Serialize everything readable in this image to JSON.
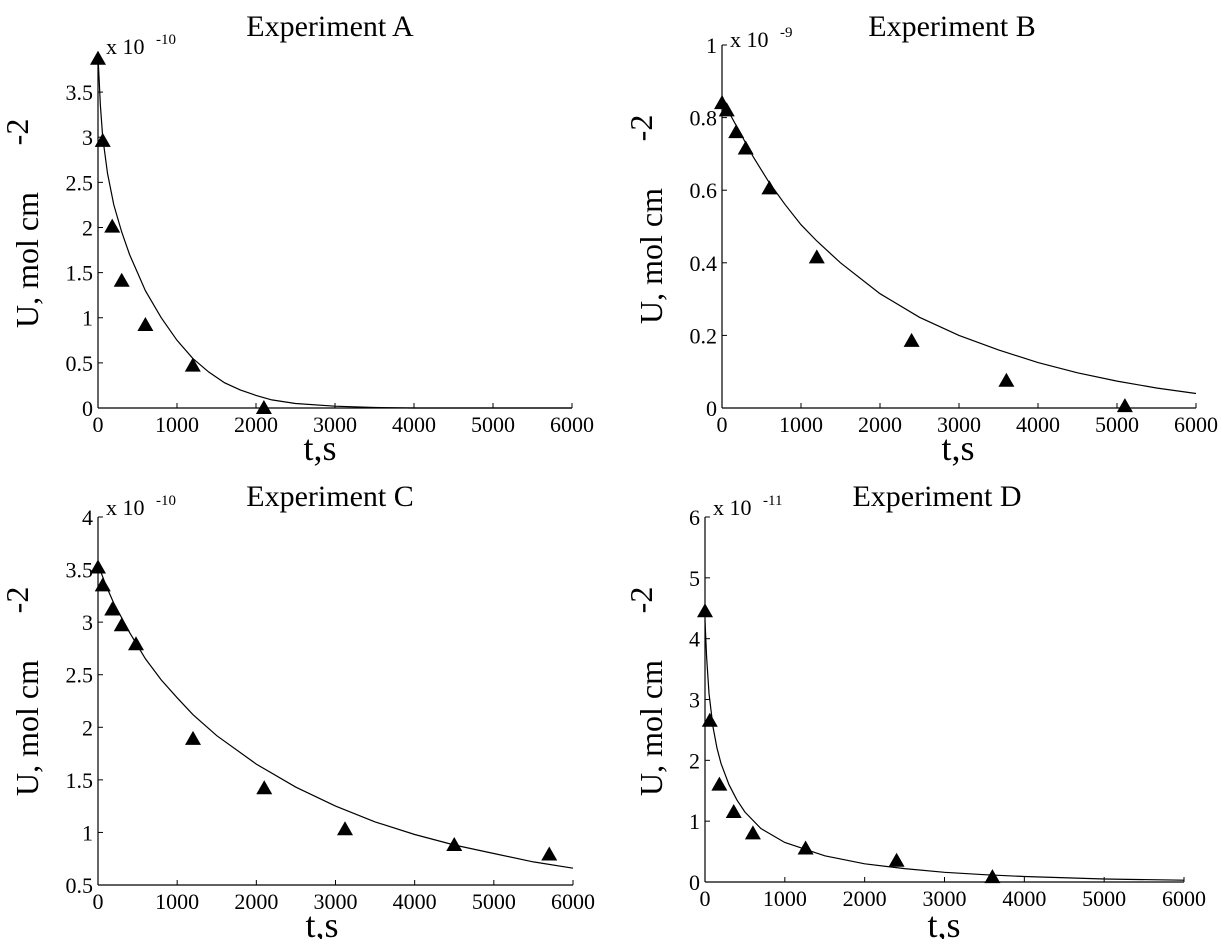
{
  "chart_data": [
    {
      "type": "scatter",
      "title": "Experiment A",
      "xlabel": "t,s",
      "ylabel_main": "U, mol cm",
      "ylabel_exp": "-2",
      "multiplier": "x 10",
      "multiplier_exp": "-10",
      "xlim": [
        0,
        6000
      ],
      "ylim": [
        0,
        3.9
      ],
      "xticks": [
        0,
        1000,
        2000,
        3000,
        4000,
        5000,
        6000
      ],
      "yticks": [
        0,
        0.5,
        1,
        1.5,
        2,
        2.5,
        3,
        3.5
      ],
      "ytick_labels": [
        "0",
        "0.5",
        "1",
        "1.5",
        "2",
        "2.5",
        "3",
        "3.5"
      ],
      "points": [
        [
          0,
          3.87
        ],
        [
          60,
          2.96
        ],
        [
          180,
          2.01
        ],
        [
          300,
          1.41
        ],
        [
          600,
          0.92
        ],
        [
          1200,
          0.47
        ],
        [
          2100,
          0.0
        ]
      ],
      "fit_curve": [
        [
          0,
          3.9
        ],
        [
          30,
          3.35
        ],
        [
          60,
          3.0
        ],
        [
          120,
          2.6
        ],
        [
          200,
          2.25
        ],
        [
          300,
          1.95
        ],
        [
          400,
          1.7
        ],
        [
          500,
          1.5
        ],
        [
          600,
          1.3
        ],
        [
          800,
          1.0
        ],
        [
          1000,
          0.75
        ],
        [
          1200,
          0.55
        ],
        [
          1400,
          0.4
        ],
        [
          1600,
          0.28
        ],
        [
          1800,
          0.2
        ],
        [
          2000,
          0.14
        ],
        [
          2200,
          0.09
        ],
        [
          2500,
          0.05
        ],
        [
          3000,
          0.02
        ],
        [
          3500,
          0.005
        ],
        [
          4000,
          0.0
        ],
        [
          6000,
          0.0
        ]
      ]
    },
    {
      "type": "scatter",
      "title": "Experiment B",
      "xlabel": "t,s",
      "ylabel_main": "U, mol cm",
      "ylabel_exp": "-2",
      "multiplier": "x 10",
      "multiplier_exp": "-9",
      "xlim": [
        0,
        6000
      ],
      "ylim": [
        0,
        1
      ],
      "xticks": [
        0,
        1000,
        2000,
        3000,
        4000,
        5000,
        6000
      ],
      "yticks": [
        0,
        0.2,
        0.4,
        0.6,
        0.8,
        1
      ],
      "ytick_labels": [
        "0",
        "0.2",
        "0.4",
        "0.6",
        "0.8",
        "1"
      ],
      "points": [
        [
          0,
          0.84
        ],
        [
          60,
          0.82
        ],
        [
          180,
          0.76
        ],
        [
          300,
          0.715
        ],
        [
          600,
          0.605
        ],
        [
          1200,
          0.415
        ],
        [
          2400,
          0.185
        ],
        [
          3600,
          0.075
        ],
        [
          5100,
          0.005
        ]
      ],
      "fit_curve": [
        [
          0,
          0.86
        ],
        [
          100,
          0.81
        ],
        [
          200,
          0.77
        ],
        [
          400,
          0.69
        ],
        [
          600,
          0.62
        ],
        [
          800,
          0.56
        ],
        [
          1000,
          0.505
        ],
        [
          1200,
          0.46
        ],
        [
          1500,
          0.4
        ],
        [
          2000,
          0.315
        ],
        [
          2500,
          0.25
        ],
        [
          3000,
          0.2
        ],
        [
          3500,
          0.16
        ],
        [
          4000,
          0.125
        ],
        [
          4500,
          0.097
        ],
        [
          5000,
          0.074
        ],
        [
          5500,
          0.055
        ],
        [
          6000,
          0.04
        ]
      ]
    },
    {
      "type": "scatter",
      "title": "Experiment C",
      "xlabel": "t,s",
      "ylabel_main": "U, mol cm",
      "ylabel_exp": "-2",
      "multiplier": "x 10",
      "multiplier_exp": "-10",
      "xlim": [
        0,
        6000
      ],
      "ylim": [
        0.5,
        4
      ],
      "xticks": [
        0,
        1000,
        2000,
        3000,
        4000,
        5000,
        6000
      ],
      "yticks": [
        0.5,
        1,
        1.5,
        2,
        2.5,
        3,
        3.5,
        4
      ],
      "ytick_labels": [
        "0.5",
        "1",
        "1.5",
        "2",
        "2.5",
        "3",
        "3.5",
        "4"
      ],
      "points": [
        [
          0,
          3.52
        ],
        [
          60,
          3.35
        ],
        [
          180,
          3.12
        ],
        [
          300,
          2.97
        ],
        [
          480,
          2.79
        ],
        [
          1200,
          1.89
        ],
        [
          2100,
          1.42
        ],
        [
          3120,
          1.03
        ],
        [
          4500,
          0.88
        ],
        [
          5700,
          0.79
        ]
      ],
      "fit_curve": [
        [
          0,
          3.55
        ],
        [
          100,
          3.35
        ],
        [
          200,
          3.18
        ],
        [
          400,
          2.9
        ],
        [
          600,
          2.65
        ],
        [
          800,
          2.45
        ],
        [
          1000,
          2.28
        ],
        [
          1200,
          2.12
        ],
        [
          1500,
          1.92
        ],
        [
          2000,
          1.65
        ],
        [
          2500,
          1.43
        ],
        [
          3000,
          1.25
        ],
        [
          3500,
          1.1
        ],
        [
          4000,
          0.98
        ],
        [
          4500,
          0.88
        ],
        [
          5000,
          0.8
        ],
        [
          5500,
          0.72
        ],
        [
          6000,
          0.66
        ]
      ]
    },
    {
      "type": "scatter",
      "title": "Experiment D",
      "xlabel": "t,s",
      "ylabel_main": "U, mol cm",
      "ylabel_exp": "-2",
      "multiplier": "x 10",
      "multiplier_exp": "-11",
      "xlim": [
        0,
        6000
      ],
      "ylim": [
        0,
        6
      ],
      "xticks": [
        0,
        1000,
        2000,
        3000,
        4000,
        5000,
        6000
      ],
      "yticks": [
        0,
        1,
        2,
        3,
        4,
        5,
        6
      ],
      "ytick_labels": [
        "0",
        "1",
        "2",
        "3",
        "4",
        "5",
        "6"
      ],
      "points": [
        [
          0,
          4.45
        ],
        [
          60,
          2.65
        ],
        [
          180,
          1.6
        ],
        [
          360,
          1.15
        ],
        [
          600,
          0.8
        ],
        [
          1260,
          0.55
        ],
        [
          2400,
          0.35
        ],
        [
          3600,
          0.08
        ]
      ],
      "fit_curve": [
        [
          0,
          4.3
        ],
        [
          20,
          3.7
        ],
        [
          50,
          3.1
        ],
        [
          100,
          2.55
        ],
        [
          150,
          2.2
        ],
        [
          200,
          1.95
        ],
        [
          300,
          1.6
        ],
        [
          400,
          1.35
        ],
        [
          500,
          1.15
        ],
        [
          700,
          0.88
        ],
        [
          1000,
          0.65
        ],
        [
          1500,
          0.43
        ],
        [
          2000,
          0.3
        ],
        [
          2500,
          0.22
        ],
        [
          3000,
          0.16
        ],
        [
          3500,
          0.12
        ],
        [
          4000,
          0.09
        ],
        [
          5000,
          0.05
        ],
        [
          6000,
          0.03
        ]
      ]
    }
  ]
}
